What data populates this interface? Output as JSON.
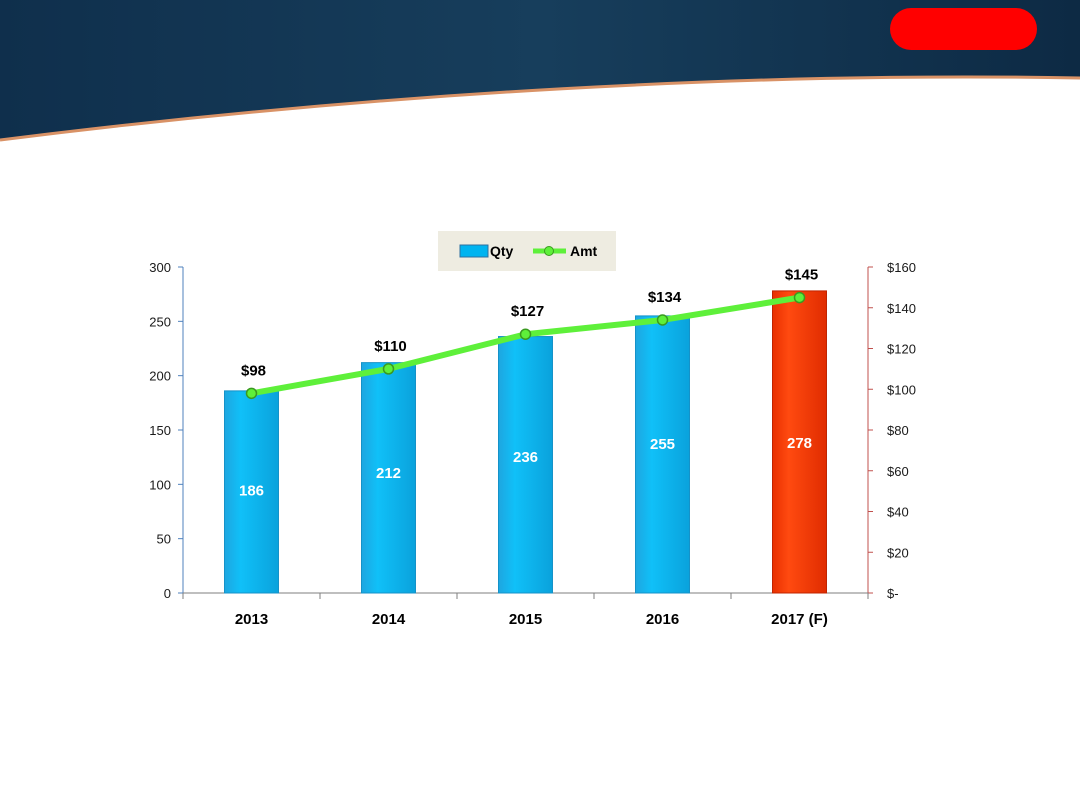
{
  "colors": {
    "qty_bar": "#00b4f0",
    "qty_bar_forecast": "#ff3b00",
    "amt_line": "#5ef03a",
    "right_axis": "#c0504d",
    "left_axis": "#4f81bd",
    "banner_dark": "#0d2a44",
    "badge": "#ff0000"
  },
  "chart_data": {
    "type": "bar",
    "categories": [
      "2013",
      "2014",
      "2015",
      "2016",
      "2017 (F)"
    ],
    "series": [
      {
        "name": "Qty",
        "type": "bar",
        "axis": "left",
        "values": [
          186,
          212,
          236,
          255,
          278
        ]
      },
      {
        "name": "Amt",
        "type": "line",
        "axis": "right",
        "values": [
          98,
          110,
          127,
          134,
          145
        ],
        "labels": [
          "$98",
          "$110",
          "$127",
          "$134",
          "$145"
        ]
      }
    ],
    "forecast_index": 4,
    "y_left": {
      "min": 0,
      "max": 300,
      "ticks": [
        0,
        50,
        100,
        150,
        200,
        250,
        300
      ],
      "tick_labels": [
        "0",
        "50",
        "100",
        "150",
        "200",
        "250",
        "300"
      ]
    },
    "y_right": {
      "min": 0,
      "max": 160,
      "ticks": [
        0,
        20,
        40,
        60,
        80,
        100,
        120,
        140,
        160
      ],
      "tick_labels": [
        "$-",
        "$20",
        "$40",
        "$60",
        "$80",
        "$100",
        "$120",
        "$140",
        "$160"
      ]
    },
    "legend": {
      "position": "top",
      "items": [
        "Qty",
        "Amt"
      ]
    },
    "grid": false
  }
}
